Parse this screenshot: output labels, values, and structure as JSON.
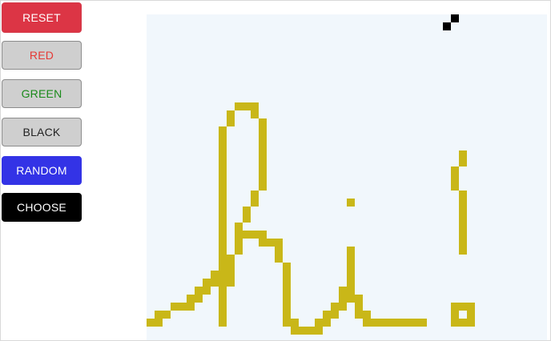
{
  "buttons": {
    "reset": "RESET",
    "red": "RED",
    "green": "GREEN",
    "black": "BLACK",
    "random": "RANDOM",
    "choose": "CHOOSE"
  },
  "colors": {
    "reset_bg": "#dc3545",
    "neutral_bg": "#cfcfcf",
    "red_text": "#e53935",
    "green_text": "#1a8a1a",
    "random_bg": "#3333e6",
    "choose_bg": "#000000",
    "canvas_bg": "#f1f7fc",
    "paint_olive": "#c9b718",
    "paint_black": "#000000"
  }
}
